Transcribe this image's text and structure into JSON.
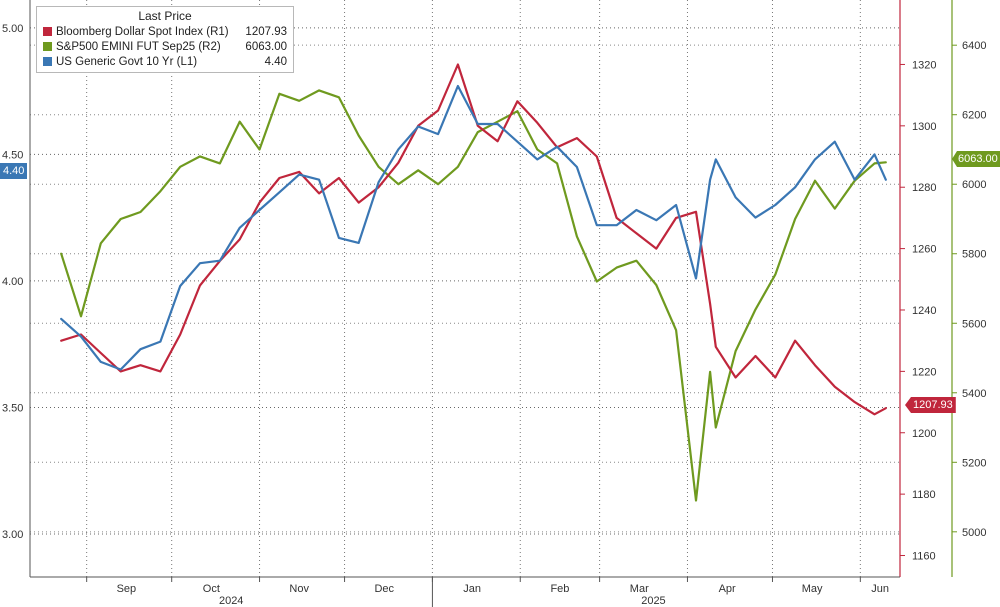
{
  "chart_data": {
    "type": "line",
    "legend": {
      "title": "Last Price",
      "placement": "top-left",
      "entries": [
        {
          "name": "Bloomberg Dollar Spot Index",
          "axis_tag": "(R1)",
          "value": "1207.93",
          "color": "#c0263c"
        },
        {
          "name": "S&P500 EMINI FUT Sep25",
          "axis_tag": "(R2)",
          "value": "6063.00",
          "color": "#6f9a1f"
        },
        {
          "name": "US Generic Govt 10 Yr",
          "axis_tag": "(L1)",
          "value": "4.40",
          "color": "#3a77b4"
        }
      ]
    },
    "x_axis": {
      "months": [
        "Sep",
        "Oct",
        "Nov",
        "Dec",
        "Jan",
        "Feb",
        "Mar",
        "Apr",
        "May",
        "Jun"
      ],
      "years": [
        "2024",
        "2025"
      ]
    },
    "axes": {
      "left": {
        "ticks": [
          "5.00",
          "4.50",
          "4.00",
          "3.50",
          "3.00"
        ],
        "range": [
          2.83,
          5.11
        ]
      },
      "right1": {
        "ticks": [
          "1320",
          "1300",
          "1280",
          "1260",
          "1240",
          "1220",
          "1200",
          "1180",
          "1160"
        ],
        "range": [
          1153,
          1341
        ]
      },
      "right2": {
        "ticks": [
          "6400",
          "6200",
          "6000",
          "5800",
          "5600",
          "5400",
          "5200",
          "5000"
        ],
        "range": [
          4870,
          6530
        ]
      }
    },
    "grid": true,
    "last_value_tags": {
      "left": "4.40",
      "right1": "1207.93",
      "right2": "6063.00"
    },
    "series": [
      {
        "name": "US Generic Govt 10 Yr",
        "axis": "left",
        "color": "#3a77b4",
        "x": [
          "2024-08-23",
          "2024-08-30",
          "2024-09-06",
          "2024-09-13",
          "2024-09-20",
          "2024-09-27",
          "2024-10-04",
          "2024-10-11",
          "2024-10-18",
          "2024-10-25",
          "2024-11-01",
          "2024-11-08",
          "2024-11-15",
          "2024-11-22",
          "2024-11-29",
          "2024-12-06",
          "2024-12-13",
          "2024-12-20",
          "2024-12-27",
          "2025-01-03",
          "2025-01-10",
          "2025-01-17",
          "2025-01-24",
          "2025-01-31",
          "2025-02-07",
          "2025-02-14",
          "2025-02-21",
          "2025-02-28",
          "2025-03-07",
          "2025-03-14",
          "2025-03-21",
          "2025-03-28",
          "2025-04-04",
          "2025-04-09",
          "2025-04-11",
          "2025-04-18",
          "2025-04-25",
          "2025-05-02",
          "2025-05-09",
          "2025-05-16",
          "2025-05-23",
          "2025-05-30",
          "2025-06-06",
          "2025-06-10"
        ],
        "values": [
          3.85,
          3.78,
          3.68,
          3.65,
          3.73,
          3.76,
          3.98,
          4.07,
          4.08,
          4.21,
          4.28,
          4.35,
          4.42,
          4.4,
          4.17,
          4.15,
          4.39,
          4.52,
          4.61,
          4.58,
          4.77,
          4.62,
          4.62,
          4.55,
          4.48,
          4.53,
          4.45,
          4.22,
          4.22,
          4.28,
          4.24,
          4.3,
          4.01,
          4.4,
          4.48,
          4.33,
          4.25,
          4.3,
          4.37,
          4.48,
          4.55,
          4.4,
          4.5,
          4.4
        ]
      },
      {
        "name": "Bloomberg Dollar Spot Index",
        "axis": "right1",
        "color": "#c0263c",
        "x": [
          "2024-08-23",
          "2024-08-30",
          "2024-09-06",
          "2024-09-13",
          "2024-09-20",
          "2024-09-27",
          "2024-10-04",
          "2024-10-11",
          "2024-10-18",
          "2024-10-25",
          "2024-11-01",
          "2024-11-08",
          "2024-11-15",
          "2024-11-22",
          "2024-11-29",
          "2024-12-06",
          "2024-12-13",
          "2024-12-20",
          "2024-12-27",
          "2025-01-03",
          "2025-01-10",
          "2025-01-17",
          "2025-01-24",
          "2025-01-31",
          "2025-02-07",
          "2025-02-14",
          "2025-02-21",
          "2025-02-28",
          "2025-03-07",
          "2025-03-14",
          "2025-03-21",
          "2025-03-28",
          "2025-04-04",
          "2025-04-09",
          "2025-04-11",
          "2025-04-18",
          "2025-04-25",
          "2025-05-02",
          "2025-05-09",
          "2025-05-16",
          "2025-05-23",
          "2025-05-30",
          "2025-06-06",
          "2025-06-10"
        ],
        "values": [
          1230,
          1232,
          1226,
          1220,
          1222,
          1220,
          1232,
          1248,
          1256,
          1263,
          1275,
          1283,
          1285,
          1278,
          1283,
          1275,
          1280,
          1288,
          1300,
          1305,
          1320,
          1300,
          1295,
          1308,
          1301,
          1293,
          1296,
          1290,
          1270,
          1265,
          1260,
          1270,
          1272,
          1242,
          1228,
          1218,
          1225,
          1218,
          1230,
          1222,
          1215,
          1210,
          1206,
          1208
        ]
      },
      {
        "name": "S&P500 EMINI FUT Sep25",
        "axis": "right2",
        "color": "#6f9a1f",
        "x": [
          "2024-08-23",
          "2024-08-30",
          "2024-09-06",
          "2024-09-13",
          "2024-09-20",
          "2024-09-27",
          "2024-10-04",
          "2024-10-11",
          "2024-10-18",
          "2024-10-25",
          "2024-11-01",
          "2024-11-08",
          "2024-11-15",
          "2024-11-22",
          "2024-11-29",
          "2024-12-06",
          "2024-12-13",
          "2024-12-20",
          "2024-12-27",
          "2025-01-03",
          "2025-01-10",
          "2025-01-17",
          "2025-01-24",
          "2025-01-31",
          "2025-02-07",
          "2025-02-14",
          "2025-02-21",
          "2025-02-28",
          "2025-03-07",
          "2025-03-14",
          "2025-03-21",
          "2025-03-28",
          "2025-04-04",
          "2025-04-09",
          "2025-04-11",
          "2025-04-18",
          "2025-04-25",
          "2025-05-02",
          "2025-05-09",
          "2025-05-16",
          "2025-05-23",
          "2025-05-30",
          "2025-06-06",
          "2025-06-10"
        ],
        "values": [
          5800,
          5620,
          5830,
          5900,
          5920,
          5980,
          6050,
          6080,
          6060,
          6180,
          6100,
          6260,
          6240,
          6270,
          6250,
          6140,
          6050,
          6000,
          6040,
          6000,
          6050,
          6150,
          6180,
          6210,
          6100,
          6060,
          5850,
          5720,
          5760,
          5780,
          5710,
          5580,
          5090,
          5460,
          5300,
          5520,
          5640,
          5740,
          5900,
          6010,
          5930,
          6010,
          6060,
          6063
        ]
      }
    ]
  }
}
